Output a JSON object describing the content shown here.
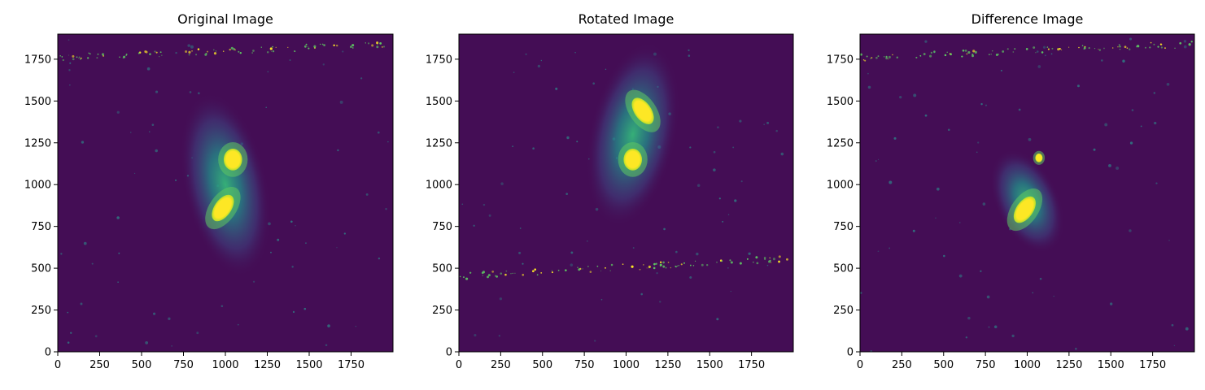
{
  "figure": {
    "background": "#ffffff",
    "colormap": "viridis",
    "colors": {
      "bg": "#440d55",
      "glow": "#2c8d8c",
      "core": "#fde725",
      "spark": "#fde725"
    }
  },
  "chart_data": [
    {
      "type": "heatmap",
      "title": "Original Image",
      "xlabel": "",
      "ylabel": "",
      "xlim": [
        0,
        2000
      ],
      "ylim": [
        0,
        1900
      ],
      "x_ticks": [
        0,
        250,
        500,
        750,
        1000,
        1250,
        1500,
        1750
      ],
      "y_ticks": [
        0,
        250,
        500,
        750,
        1000,
        1250,
        1500,
        1750
      ],
      "features": {
        "halo": {
          "x": 1000,
          "y": 1000,
          "rx": 250,
          "ry": 560,
          "angle": -12
        },
        "cores": [
          {
            "x": 1045,
            "y": 1150,
            "rx": 55,
            "ry": 65,
            "angle": 0
          },
          {
            "x": 985,
            "y": 860,
            "rx": 50,
            "ry": 90,
            "angle": 35
          }
        ],
        "streak": {
          "y_left": 1760,
          "y_right": 1840
        }
      }
    },
    {
      "type": "heatmap",
      "title": "Rotated Image",
      "xlabel": "",
      "ylabel": "",
      "xlim": [
        0,
        2000
      ],
      "ylim": [
        0,
        1900
      ],
      "x_ticks": [
        0,
        250,
        500,
        750,
        1000,
        1250,
        1500,
        1750
      ],
      "y_ticks": [
        0,
        250,
        500,
        750,
        1000,
        1250,
        1500,
        1750
      ],
      "features": {
        "halo": {
          "x": 1040,
          "y": 1300,
          "rx": 260,
          "ry": 560,
          "angle": 12
        },
        "cores": [
          {
            "x": 1040,
            "y": 1150,
            "rx": 55,
            "ry": 65,
            "angle": 0
          },
          {
            "x": 1100,
            "y": 1440,
            "rx": 50,
            "ry": 90,
            "angle": -35
          }
        ],
        "streak": {
          "y_left": 450,
          "y_right": 560
        }
      }
    },
    {
      "type": "heatmap",
      "title": "Difference Image",
      "xlabel": "",
      "ylabel": "",
      "xlim": [
        0,
        2000
      ],
      "ylim": [
        0,
        1900
      ],
      "x_ticks": [
        0,
        250,
        500,
        750,
        1000,
        1250,
        1500,
        1750
      ],
      "y_ticks": [
        0,
        250,
        500,
        750,
        1000,
        1250,
        1500,
        1750
      ],
      "features": {
        "halo": {
          "x": 1000,
          "y": 900,
          "rx": 190,
          "ry": 330,
          "angle": -25
        },
        "cores": [
          {
            "x": 985,
            "y": 850,
            "rx": 50,
            "ry": 90,
            "angle": 35
          },
          {
            "x": 1070,
            "y": 1160,
            "rx": 22,
            "ry": 26,
            "angle": 0
          }
        ],
        "streak": {
          "y_left": 1760,
          "y_right": 1840
        }
      }
    }
  ]
}
